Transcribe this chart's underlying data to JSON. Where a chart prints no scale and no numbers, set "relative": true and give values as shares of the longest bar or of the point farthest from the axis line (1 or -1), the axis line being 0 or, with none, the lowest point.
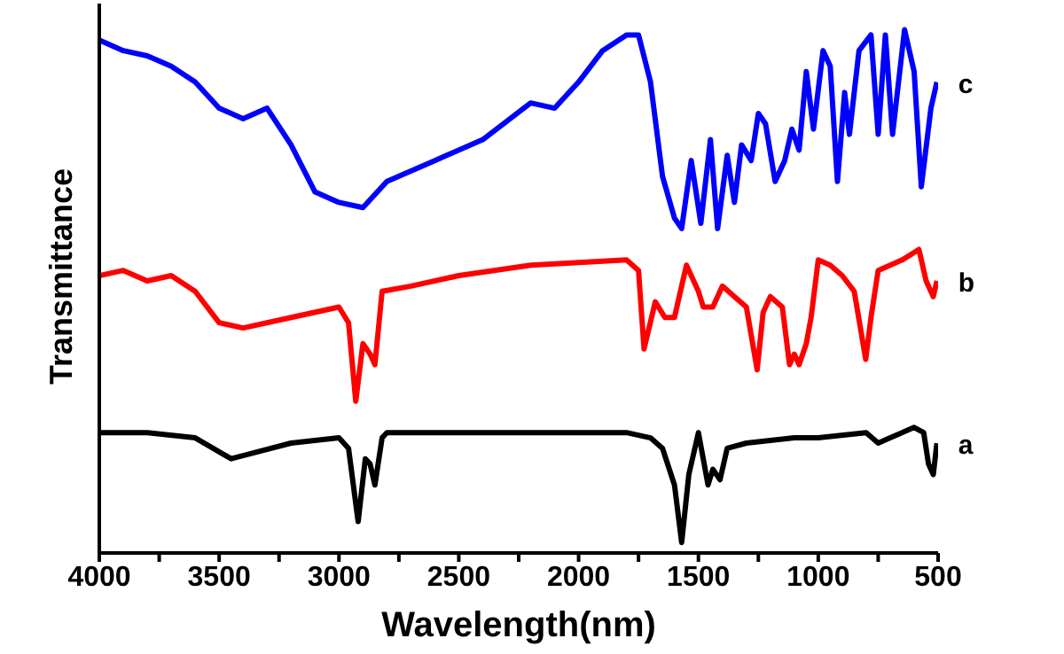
{
  "chart_data": {
    "type": "line",
    "xlabel": "Wavelength(nm)",
    "ylabel": "Transmittance",
    "relative": true,
    "xlim": [
      4000,
      500
    ],
    "xticks": [
      4000,
      {
        "value": 3750,
        "label": null
      },
      3500,
      {
        "value": 3250,
        "label": null
      },
      3000,
      {
        "value": 2750,
        "label": null
      },
      2500,
      {
        "value": 2250,
        "label": null
      },
      2000,
      {
        "value": 1750,
        "label": null
      },
      1500,
      {
        "value": 1250,
        "label": null
      },
      1000,
      {
        "value": 750,
        "label": null
      },
      500
    ],
    "marker": "none",
    "line_style": "solid",
    "series": [
      {
        "name": "a",
        "color": "#000000",
        "x": [
          4000,
          3800,
          3600,
          3450,
          3200,
          3000,
          2960,
          2920,
          2890,
          2870,
          2850,
          2820,
          2800,
          1800,
          1700,
          1650,
          1600,
          1570,
          1540,
          1500,
          1460,
          1440,
          1410,
          1380,
          1300,
          1100,
          1000,
          800,
          750,
          700,
          600,
          560,
          540,
          520,
          505
        ],
        "values": [
          0.23,
          0.23,
          0.22,
          0.18,
          0.21,
          0.22,
          0.2,
          0.06,
          0.18,
          0.17,
          0.13,
          0.22,
          0.23,
          0.23,
          0.22,
          0.2,
          0.13,
          0.02,
          0.15,
          0.23,
          0.13,
          0.16,
          0.14,
          0.2,
          0.21,
          0.22,
          0.22,
          0.23,
          0.21,
          0.22,
          0.24,
          0.23,
          0.17,
          0.15,
          0.21
        ]
      },
      {
        "name": "b",
        "color": "#ff0000",
        "x": [
          4000,
          3900,
          3800,
          3700,
          3600,
          3500,
          3400,
          3200,
          3000,
          2960,
          2930,
          2900,
          2870,
          2850,
          2820,
          2700,
          2500,
          2200,
          1800,
          1750,
          1727,
          1680,
          1640,
          1600,
          1550,
          1500,
          1480,
          1440,
          1400,
          1350,
          1300,
          1255,
          1230,
          1200,
          1150,
          1120,
          1100,
          1080,
          1050,
          1030,
          1000,
          950,
          900,
          850,
          802,
          780,
          750,
          700,
          650,
          580,
          550,
          520,
          505
        ],
        "values": [
          0.53,
          0.54,
          0.52,
          0.53,
          0.5,
          0.44,
          0.43,
          0.45,
          0.47,
          0.44,
          0.29,
          0.4,
          0.38,
          0.36,
          0.5,
          0.51,
          0.53,
          0.55,
          0.56,
          0.54,
          0.39,
          0.48,
          0.45,
          0.45,
          0.55,
          0.5,
          0.47,
          0.47,
          0.51,
          0.49,
          0.47,
          0.35,
          0.46,
          0.49,
          0.47,
          0.36,
          0.38,
          0.36,
          0.4,
          0.45,
          0.56,
          0.55,
          0.53,
          0.5,
          0.37,
          0.45,
          0.54,
          0.55,
          0.56,
          0.58,
          0.52,
          0.49,
          0.52
        ]
      },
      {
        "name": "c",
        "color": "#0000ff",
        "x": [
          4000,
          3900,
          3800,
          3700,
          3600,
          3500,
          3400,
          3300,
          3200,
          3100,
          3000,
          2900,
          2800,
          2600,
          2400,
          2200,
          2100,
          2000,
          1900,
          1800,
          1750,
          1700,
          1650,
          1600,
          1570,
          1530,
          1490,
          1450,
          1420,
          1380,
          1350,
          1320,
          1280,
          1250,
          1220,
          1180,
          1140,
          1110,
          1080,
          1050,
          1020,
          980,
          950,
          920,
          890,
          870,
          830,
          780,
          750,
          720,
          690,
          640,
          600,
          570,
          530,
          505
        ],
        "values": [
          0.98,
          0.96,
          0.95,
          0.93,
          0.9,
          0.85,
          0.83,
          0.85,
          0.78,
          0.69,
          0.67,
          0.66,
          0.71,
          0.75,
          0.79,
          0.86,
          0.85,
          0.9,
          0.96,
          0.99,
          0.99,
          0.9,
          0.72,
          0.64,
          0.62,
          0.75,
          0.63,
          0.79,
          0.62,
          0.76,
          0.67,
          0.78,
          0.75,
          0.84,
          0.82,
          0.71,
          0.75,
          0.81,
          0.77,
          0.92,
          0.81,
          0.96,
          0.93,
          0.71,
          0.88,
          0.8,
          0.96,
          0.99,
          0.8,
          0.99,
          0.8,
          1,
          0.92,
          0.7,
          0.85,
          0.9
        ]
      }
    ]
  }
}
